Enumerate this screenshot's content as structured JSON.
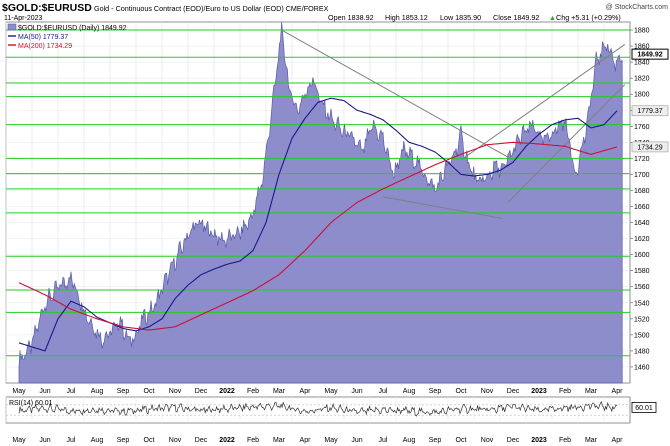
{
  "header": {
    "symbol": "$GOLD:$EURUSD",
    "description": "Gold - Continuous Contract (EOD)/Euro to US Dollar (EOD) CME/FOREX",
    "date": "11-Apr-2023",
    "open": "Open 1838.92",
    "high": "High 1853.12",
    "low": "Low 1835.90",
    "close": "Close 1849.92",
    "change": "Chg +5.31 (+0.29%)",
    "change_arrow": "▲",
    "watermark": "@ StockCharts.com"
  },
  "colors": {
    "area_fill": "#8d8dcc",
    "area_line": "#5a5aa8",
    "ma50": "#1a1a8c",
    "ma200": "#cc1133",
    "green_lines": "#22cc22",
    "trendline": "#808080",
    "rsi_line": "#333333"
  },
  "chart_data": [
    {
      "type": "area",
      "title": "$GOLD:$EURUSD (Daily) 1849.92",
      "ylim": [
        1440,
        1890
      ],
      "yticks": [
        1460,
        1480,
        1500,
        1520,
        1540,
        1560,
        1580,
        1600,
        1620,
        1640,
        1660,
        1680,
        1700,
        1720,
        1740,
        1760,
        1780,
        1800,
        1820,
        1840,
        1860,
        1880
      ],
      "xticks": [
        "May",
        "Jun",
        "Jul",
        "Aug",
        "Sep",
        "Oct",
        "Nov",
        "Dec",
        "2022",
        "Feb",
        "Mar",
        "Apr",
        "May",
        "Jun",
        "Jul",
        "Aug",
        "Sep",
        "Oct",
        "Nov",
        "Dec",
        "2023",
        "Feb",
        "Mar",
        "Apr"
      ],
      "price_tags": [
        {
          "value": 1849.92,
          "label": "1849.92",
          "style": "dark"
        },
        {
          "value": 1779.37,
          "label": "1779.37",
          "style": "light"
        },
        {
          "value": 1734.29,
          "label": "1734.29",
          "style": "light"
        }
      ],
      "series": [
        {
          "name": "MA(50) 1779.37",
          "kind": "ma50",
          "anchors": [
            [
              0,
              1490
            ],
            [
              1,
              1480
            ],
            [
              1.5,
              1520
            ],
            [
              2,
              1542
            ],
            [
              2.5,
              1535
            ],
            [
              3,
              1522
            ],
            [
              3.5,
              1515
            ],
            [
              4,
              1508
            ],
            [
              4.5,
              1505
            ],
            [
              5,
              1510
            ],
            [
              5.5,
              1520
            ],
            [
              6,
              1545
            ],
            [
              6.5,
              1562
            ],
            [
              7,
              1575
            ],
            [
              7.5,
              1582
            ],
            [
              8,
              1588
            ],
            [
              8.5,
              1592
            ],
            [
              9,
              1605
            ],
            [
              9.5,
              1640
            ],
            [
              10,
              1700
            ],
            [
              10.5,
              1745
            ],
            [
              11,
              1770
            ],
            [
              11.5,
              1790
            ],
            [
              12,
              1795
            ],
            [
              12.5,
              1792
            ],
            [
              13,
              1780
            ],
            [
              13.5,
              1775
            ],
            [
              14,
              1768
            ],
            [
              14.5,
              1755
            ],
            [
              15,
              1740
            ],
            [
              15.5,
              1735
            ],
            [
              16,
              1728
            ],
            [
              16.5,
              1715
            ],
            [
              17,
              1700
            ],
            [
              17.5,
              1698
            ],
            [
              18,
              1700
            ],
            [
              18.5,
              1705
            ],
            [
              19,
              1715
            ],
            [
              19.5,
              1735
            ],
            [
              20,
              1750
            ],
            [
              20.5,
              1762
            ],
            [
              21,
              1768
            ],
            [
              21.5,
              1770
            ],
            [
              22,
              1758
            ],
            [
              22.5,
              1762
            ],
            [
              23,
              1779.37
            ]
          ]
        },
        {
          "name": "MA(200) 1734.29",
          "kind": "ma200",
          "anchors": [
            [
              0,
              1565
            ],
            [
              1,
              1550
            ],
            [
              2,
              1532
            ],
            [
              3,
              1520
            ],
            [
              4,
              1510
            ],
            [
              5,
              1506
            ],
            [
              6,
              1510
            ],
            [
              7,
              1525
            ],
            [
              8,
              1540
            ],
            [
              9,
              1555
            ],
            [
              10,
              1575
            ],
            [
              11,
              1605
            ],
            [
              12,
              1640
            ],
            [
              13,
              1665
            ],
            [
              14,
              1682
            ],
            [
              15,
              1697
            ],
            [
              16,
              1712
            ],
            [
              17,
              1725
            ],
            [
              18,
              1737
            ],
            [
              19,
              1740
            ],
            [
              20,
              1738
            ],
            [
              21,
              1735
            ],
            [
              22,
              1725
            ],
            [
              23,
              1734.29
            ]
          ]
        },
        {
          "name": "Price",
          "kind": "price",
          "anchors": [
            [
              0,
              1468
            ],
            [
              0.5,
              1488
            ],
            [
              1,
              1540
            ],
            [
              1.5,
              1558
            ],
            [
              2,
              1572
            ],
            [
              2.3,
              1548
            ],
            [
              2.6,
              1525
            ],
            [
              2.9,
              1508
            ],
            [
              3.2,
              1495
            ],
            [
              3.6,
              1505
            ],
            [
              3.9,
              1518
            ],
            [
              4.2,
              1492
            ],
            [
              4.5,
              1500
            ],
            [
              4.8,
              1522
            ],
            [
              5.2,
              1535
            ],
            [
              5.6,
              1565
            ],
            [
              6.0,
              1592
            ],
            [
              6.5,
              1625
            ],
            [
              6.9,
              1640
            ],
            [
              7.3,
              1630
            ],
            [
              7.8,
              1618
            ],
            [
              8.2,
              1622
            ],
            [
              8.6,
              1630
            ],
            [
              9.0,
              1650
            ],
            [
              9.4,
              1700
            ],
            [
              9.8,
              1800
            ],
            [
              10.1,
              1880
            ],
            [
              10.4,
              1805
            ],
            [
              10.7,
              1780
            ],
            [
              11.0,
              1800
            ],
            [
              11.3,
              1820
            ],
            [
              11.6,
              1790
            ],
            [
              12.0,
              1770
            ],
            [
              12.4,
              1755
            ],
            [
              12.8,
              1745
            ],
            [
              13.2,
              1728
            ],
            [
              13.6,
              1760
            ],
            [
              14.0,
              1745
            ],
            [
              14.4,
              1700
            ],
            [
              14.8,
              1730
            ],
            [
              15.2,
              1720
            ],
            [
              15.6,
              1700
            ],
            [
              16.0,
              1680
            ],
            [
              16.3,
              1700
            ],
            [
              16.7,
              1722
            ],
            [
              17.0,
              1748
            ],
            [
              17.3,
              1712
            ],
            [
              17.6,
              1690
            ],
            [
              18.0,
              1695
            ],
            [
              18.3,
              1710
            ],
            [
              18.6,
              1705
            ],
            [
              19.0,
              1730
            ],
            [
              19.4,
              1752
            ],
            [
              19.8,
              1760
            ],
            [
              20.2,
              1740
            ],
            [
              20.6,
              1755
            ],
            [
              21.0,
              1768
            ],
            [
              21.4,
              1700
            ],
            [
              21.8,
              1752
            ],
            [
              22.2,
              1840
            ],
            [
              22.6,
              1865
            ],
            [
              22.9,
              1838
            ],
            [
              23.2,
              1849.92
            ]
          ]
        }
      ],
      "horizontal_levels": [
        1880,
        1846,
        1814,
        1797,
        1762,
        1720,
        1701,
        1682,
        1652,
        1598,
        1556,
        1528,
        1474
      ]
    },
    {
      "type": "line",
      "title": "RSI(14) 60.01",
      "ylim": [
        0,
        100
      ],
      "levels": [
        30,
        70
      ],
      "value": 60.01,
      "price_tag": "60.01",
      "series": [
        {
          "name": "RSI(14) 60.01",
          "anchors": [
            [
              0,
              48
            ],
            [
              1,
              58
            ],
            [
              2,
              46
            ],
            [
              3,
              52
            ],
            [
              4,
              44
            ],
            [
              5,
              54
            ],
            [
              6,
              60
            ],
            [
              7,
              48
            ],
            [
              8,
              55
            ],
            [
              9,
              62
            ],
            [
              10,
              66
            ],
            [
              11,
              44
            ],
            [
              12,
              58
            ],
            [
              13,
              42
            ],
            [
              14,
              50
            ],
            [
              15,
              46
            ],
            [
              16,
              40
            ],
            [
              17,
              55
            ],
            [
              18,
              50
            ],
            [
              19,
              62
            ],
            [
              20,
              48
            ],
            [
              21,
              58
            ],
            [
              22,
              66
            ],
            [
              23,
              60.01
            ]
          ]
        }
      ]
    }
  ]
}
